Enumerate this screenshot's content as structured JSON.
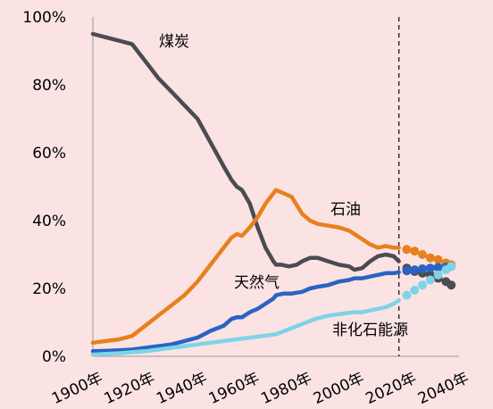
{
  "chart_data": {
    "type": "line",
    "title": "",
    "xlabel": "",
    "ylabel": "",
    "xlim": [
      1900,
      2040
    ],
    "ylim": [
      0,
      100
    ],
    "x_ticks": [
      "1900年",
      "1920年",
      "1940年",
      "1960年",
      "1980年",
      "2000年",
      "2020年",
      "2040年"
    ],
    "y_ticks": [
      "0%",
      "20%",
      "40%",
      "60%",
      "80%",
      "100%"
    ],
    "projection_start": 2017,
    "grid": false,
    "series": [
      {
        "name": "煤炭",
        "color": "#4a4c52",
        "x": [
          1900,
          1905,
          1910,
          1915,
          1920,
          1925,
          1930,
          1935,
          1940,
          1945,
          1950,
          1953,
          1955,
          1957,
          1960,
          1963,
          1966,
          1969,
          1970,
          1972,
          1975,
          1978,
          1980,
          1983,
          1986,
          1990,
          1994,
          1998,
          2000,
          2003,
          2006,
          2009,
          2012,
          2015,
          2017
        ],
        "y": [
          95,
          94,
          93,
          92,
          87,
          82,
          78,
          74,
          70,
          63,
          56,
          52,
          50,
          49,
          45,
          38,
          32,
          28,
          27,
          27,
          26.5,
          27,
          28,
          29,
          29,
          28,
          27,
          26.5,
          25.5,
          26,
          28,
          29.5,
          30,
          29.5,
          28
        ],
        "projection": {
          "x": [
            2017,
            2020,
            2023,
            2026,
            2029,
            2032,
            2035,
            2037
          ],
          "y": [
            28,
            26,
            25,
            24.5,
            24,
            23,
            22,
            21
          ]
        }
      },
      {
        "name": "石油",
        "color": "#e8801e",
        "x": [
          1900,
          1905,
          1910,
          1915,
          1920,
          1925,
          1930,
          1935,
          1940,
          1945,
          1950,
          1953,
          1955,
          1957,
          1960,
          1963,
          1966,
          1968,
          1970,
          1973,
          1976,
          1980,
          1983,
          1986,
          1990,
          1994,
          1998,
          2000,
          2003,
          2006,
          2009,
          2012,
          2015,
          2017
        ],
        "y": [
          4,
          4.5,
          5,
          6,
          9,
          12,
          15,
          18,
          22,
          27,
          32,
          35,
          36,
          35.5,
          38,
          41,
          45,
          47,
          49,
          48,
          47,
          42,
          40,
          39,
          38.5,
          38,
          37,
          36,
          34.5,
          33,
          32,
          32.5,
          32,
          32
        ],
        "projection": {
          "x": [
            2017,
            2020,
            2023,
            2026,
            2029,
            2032,
            2035,
            2037
          ],
          "y": [
            32,
            31.5,
            31,
            30,
            29,
            28.5,
            27.5,
            27
          ]
        }
      },
      {
        "name": "天然气",
        "color": "#2a63c4",
        "x": [
          1900,
          1905,
          1910,
          1915,
          1920,
          1925,
          1930,
          1935,
          1940,
          1945,
          1950,
          1953,
          1955,
          1957,
          1960,
          1963,
          1966,
          1969,
          1970,
          1973,
          1976,
          1980,
          1983,
          1986,
          1990,
          1994,
          1998,
          2000,
          2003,
          2006,
          2009,
          2012,
          2015,
          2017
        ],
        "y": [
          1.5,
          1.6,
          1.8,
          2,
          2.5,
          3,
          3.5,
          4.5,
          5.5,
          7.5,
          9,
          11,
          11.5,
          11.5,
          13,
          14,
          15.5,
          17,
          18,
          18.5,
          18.5,
          19,
          20,
          20.5,
          21,
          22,
          22.5,
          23,
          23,
          23.5,
          24,
          24.5,
          24.5,
          24.8
        ],
        "projection": {
          "x": [
            2017,
            2020,
            2023,
            2026,
            2029,
            2032,
            2035,
            2037
          ],
          "y": [
            24.8,
            25.2,
            25.5,
            25.8,
            26,
            26.2,
            26.3,
            26.5
          ]
        }
      },
      {
        "name": "非化石能源",
        "color": "#7ed3e8",
        "x": [
          1900,
          1905,
          1910,
          1915,
          1920,
          1925,
          1930,
          1935,
          1940,
          1945,
          1950,
          1955,
          1960,
          1965,
          1970,
          1975,
          1980,
          1985,
          1990,
          1995,
          2000,
          2003,
          2006,
          2009,
          2012,
          2015,
          2017
        ],
        "y": [
          0.5,
          0.7,
          0.9,
          1.2,
          1.5,
          2,
          2.5,
          3,
          3.5,
          4,
          4.5,
          5,
          5.5,
          6,
          6.5,
          8,
          9.5,
          11,
          12,
          12.5,
          13,
          13,
          13.5,
          14,
          14.5,
          15.5,
          16.5
        ],
        "projection": {
          "x": [
            2017,
            2020,
            2023,
            2026,
            2029,
            2032,
            2035,
            2037
          ],
          "y": [
            16.5,
            18,
            19.5,
            21,
            22.5,
            24,
            25.5,
            26.5
          ]
        }
      }
    ],
    "labels": [
      {
        "text": "煤炭",
        "series": 0
      },
      {
        "text": "石油",
        "series": 1
      },
      {
        "text": "天然气",
        "series": 2
      },
      {
        "text": "非化石能源",
        "series": 3
      }
    ]
  }
}
